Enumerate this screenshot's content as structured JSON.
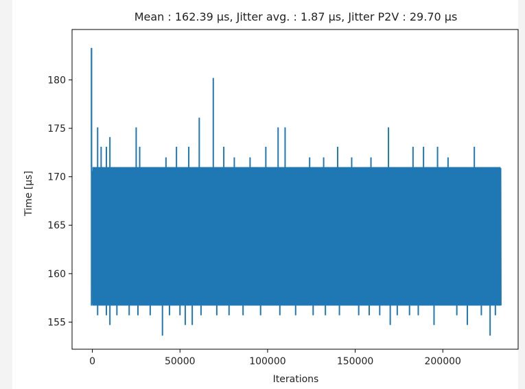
{
  "chart_data": {
    "type": "line",
    "title": "Mean : 162.39 µs, Jitter avg. : 1.87 µs, Jitter P2V : 29.70 µs",
    "xlabel": "Iterations",
    "ylabel": "Time [µs]",
    "xlim": [
      -11600,
      243000
    ],
    "ylim": [
      152.2,
      185.2
    ],
    "xticks": [
      0,
      50000,
      100000,
      150000,
      200000
    ],
    "yticks": [
      155,
      160,
      165,
      170,
      175,
      180
    ],
    "xtick_labels": [
      "0",
      "50000",
      "100000",
      "150000",
      "200000"
    ],
    "ytick_labels": [
      "155",
      "160",
      "165",
      "170",
      "175",
      "180"
    ],
    "grid": false,
    "series": [
      {
        "color": "#1f77b4",
        "x_range": [
          0,
          233000
        ],
        "band": [
          156.7,
          171.0
        ],
        "peaks": [
          [
            -500,
            183.3
          ],
          [
            1000,
            171.0
          ],
          [
            3000,
            175.1
          ],
          [
            5000,
            173.1
          ],
          [
            8000,
            173.1
          ],
          [
            10000,
            174.1
          ],
          [
            25000,
            175.1
          ],
          [
            27000,
            173.1
          ],
          [
            42000,
            172.0
          ],
          [
            48000,
            173.1
          ],
          [
            55000,
            173.1
          ],
          [
            61000,
            176.1
          ],
          [
            69000,
            180.2
          ],
          [
            75000,
            173.1
          ],
          [
            81000,
            172.0
          ],
          [
            90000,
            172.0
          ],
          [
            99000,
            173.1
          ],
          [
            106000,
            175.1
          ],
          [
            110000,
            175.1
          ],
          [
            124000,
            172.0
          ],
          [
            132000,
            172.0
          ],
          [
            140000,
            173.1
          ],
          [
            148000,
            172.0
          ],
          [
            159000,
            172.0
          ],
          [
            169000,
            175.1
          ],
          [
            183000,
            173.1
          ],
          [
            189000,
            173.1
          ],
          [
            197000,
            173.1
          ],
          [
            203000,
            172.0
          ],
          [
            218000,
            173.1
          ]
        ],
        "dips": [
          [
            3000,
            155.7
          ],
          [
            8000,
            155.7
          ],
          [
            10000,
            154.7
          ],
          [
            14000,
            155.7
          ],
          [
            21000,
            155.7
          ],
          [
            26000,
            155.7
          ],
          [
            33000,
            155.7
          ],
          [
            40000,
            153.6
          ],
          [
            44000,
            155.7
          ],
          [
            50000,
            155.7
          ],
          [
            53000,
            154.7
          ],
          [
            57000,
            154.7
          ],
          [
            62000,
            155.7
          ],
          [
            71000,
            155.7
          ],
          [
            78000,
            155.7
          ],
          [
            86000,
            155.7
          ],
          [
            96000,
            155.7
          ],
          [
            107000,
            155.7
          ],
          [
            116000,
            155.7
          ],
          [
            126000,
            155.7
          ],
          [
            133000,
            155.7
          ],
          [
            141000,
            155.7
          ],
          [
            152000,
            155.7
          ],
          [
            158000,
            155.7
          ],
          [
            164000,
            155.7
          ],
          [
            170000,
            154.7
          ],
          [
            174000,
            155.7
          ],
          [
            181000,
            155.7
          ],
          [
            186000,
            155.7
          ],
          [
            195000,
            154.7
          ],
          [
            208000,
            155.7
          ],
          [
            214000,
            154.7
          ],
          [
            222000,
            155.7
          ],
          [
            227000,
            153.6
          ],
          [
            230000,
            155.7
          ]
        ]
      }
    ]
  }
}
